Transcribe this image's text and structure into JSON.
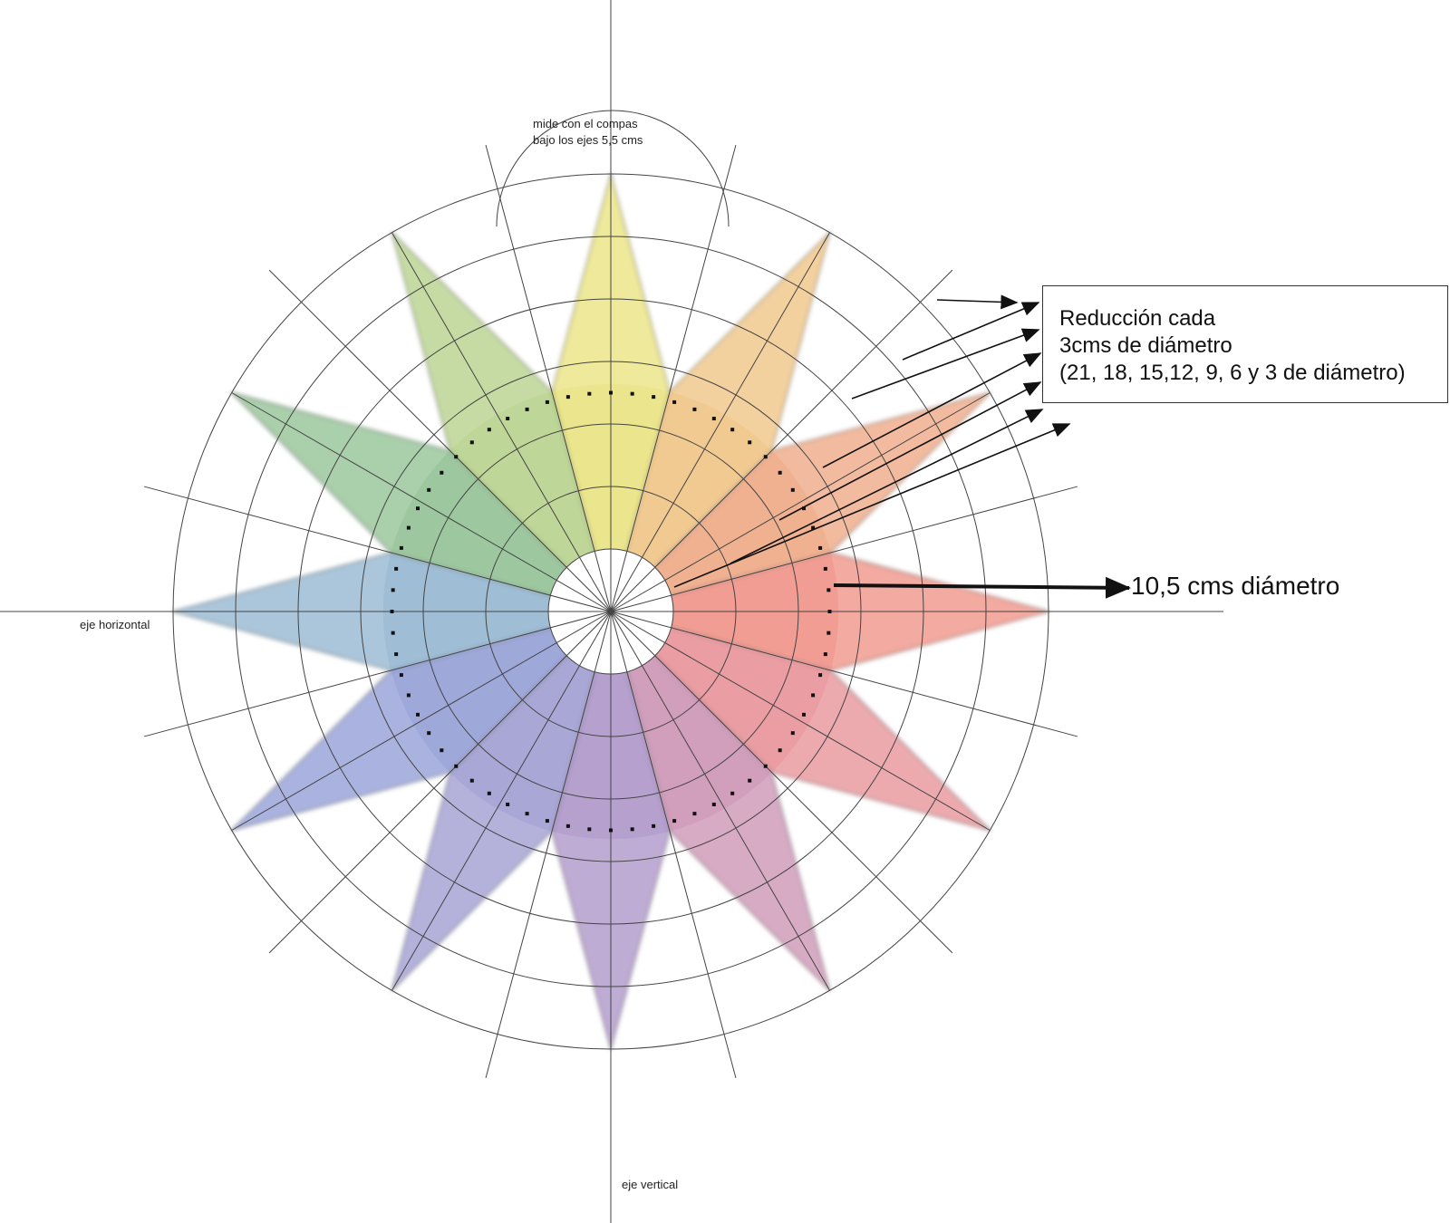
{
  "annotations": {
    "reduction_line1": "Reducción cada",
    "reduction_line2": "3cms de diámetro",
    "reduction_line3": "(21, 18, 15,12, 9, 6 y 3 de diámetro)",
    "diameter_label": "10,5 cms diámetro",
    "compass_line1": "mide con el compas",
    "compass_line2": "bajo los ejes 5,5 cms",
    "horizontal_axis": "eje horizontal",
    "vertical_axis": "eje vertical"
  },
  "wheel": {
    "ring_diameters_cm": [
      3,
      6,
      9,
      12,
      15,
      18,
      21
    ],
    "dotted_circle_diameter_cm": 10.5,
    "star_points": 12,
    "radial_lines": 24,
    "colors": {
      "yellow": "#e8e27a",
      "yellow_orange": "#efc27e",
      "orange": "#eea47e",
      "red_orange": "#ef8d80",
      "red": "#e68d93",
      "red_violet": "#c98fb0",
      "violet": "#a990c6",
      "blue_violet": "#9b98cf",
      "blue": "#8e9ad4",
      "blue_green": "#8fb3cf",
      "green": "#8dbf8f",
      "yellow_green": "#b3cf86"
    }
  }
}
